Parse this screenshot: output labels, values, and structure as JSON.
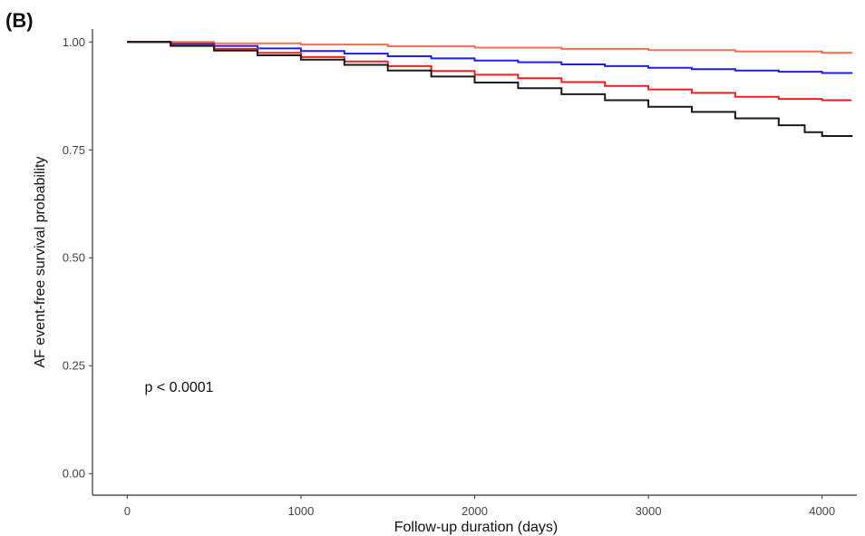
{
  "panel_label": "(B)",
  "chart_data": {
    "type": "line",
    "title": "",
    "xlabel": "Follow-up duration (days)",
    "ylabel": "AF event-free survival probability",
    "xlim": [
      -200,
      4200
    ],
    "ylim": [
      -0.05,
      1.03
    ],
    "x_ticks": [
      0,
      1000,
      2000,
      3000,
      4000
    ],
    "x_tick_labels": [
      "0",
      "1000",
      "2000",
      "3000",
      "4000"
    ],
    "y_ticks": [
      0,
      0.25,
      0.5,
      0.75,
      1.0
    ],
    "y_tick_labels": [
      "0.00",
      "0.25",
      "0.50",
      "0.75",
      "1.00"
    ],
    "grid": false,
    "legend": "none",
    "annotations": [
      {
        "text": "p < 0.0001",
        "x": 100,
        "y": 0.19
      }
    ],
    "series": [
      {
        "color": "#f07050",
        "x": [
          0,
          500,
          1000,
          1500,
          2000,
          2500,
          3000,
          3500,
          4000,
          4170
        ],
        "y": [
          1.0,
          0.997,
          0.994,
          0.99,
          0.987,
          0.984,
          0.981,
          0.978,
          0.975,
          0.974
        ]
      },
      {
        "color": "#1f1fe8",
        "x": [
          0,
          250,
          500,
          750,
          1000,
          1250,
          1500,
          1750,
          2000,
          2250,
          2500,
          2750,
          3000,
          3250,
          3500,
          3750,
          4000,
          4170
        ],
        "y": [
          1.0,
          0.996,
          0.991,
          0.985,
          0.979,
          0.973,
          0.967,
          0.962,
          0.957,
          0.953,
          0.948,
          0.944,
          0.94,
          0.937,
          0.934,
          0.931,
          0.928,
          0.926
        ]
      },
      {
        "color": "#ee2020",
        "x": [
          0,
          250,
          500,
          750,
          1000,
          1250,
          1500,
          1750,
          2000,
          2250,
          2500,
          2750,
          3000,
          3250,
          3500,
          3750,
          4000,
          4170
        ],
        "y": [
          1.0,
          0.993,
          0.984,
          0.975,
          0.965,
          0.955,
          0.944,
          0.933,
          0.924,
          0.916,
          0.907,
          0.898,
          0.89,
          0.882,
          0.873,
          0.868,
          0.865,
          0.865
        ]
      },
      {
        "color": "#1a1a1a",
        "x": [
          0,
          250,
          500,
          750,
          1000,
          1250,
          1500,
          1750,
          2000,
          2250,
          2500,
          2750,
          3000,
          3250,
          3500,
          3750,
          3900,
          4000,
          4170
        ],
        "y": [
          1.0,
          0.991,
          0.98,
          0.969,
          0.959,
          0.947,
          0.934,
          0.92,
          0.906,
          0.893,
          0.879,
          0.865,
          0.85,
          0.838,
          0.823,
          0.807,
          0.791,
          0.782,
          0.78
        ]
      }
    ]
  }
}
